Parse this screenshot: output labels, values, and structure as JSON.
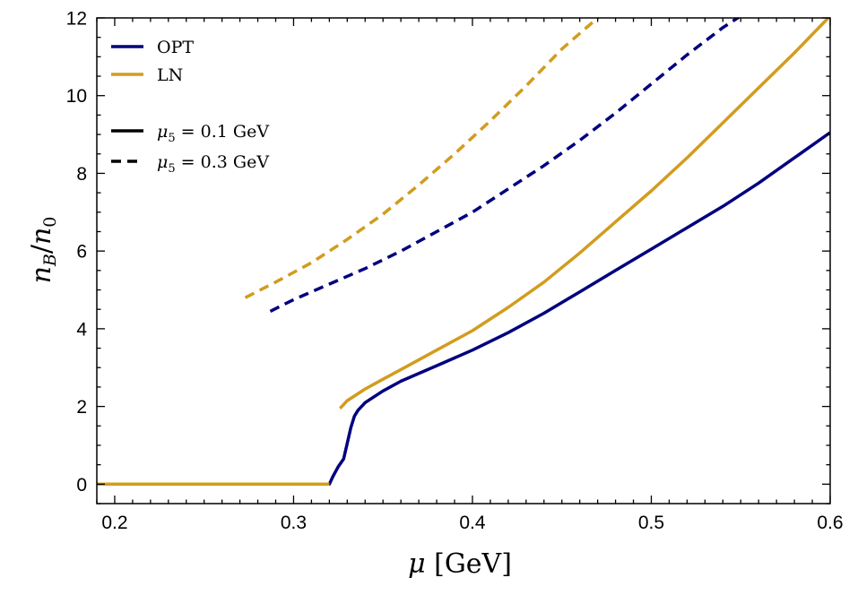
{
  "chart_data": {
    "type": "line",
    "xlabel": "μ [GeV]",
    "ylabel": "n_B/n_0",
    "xlim": [
      0.19,
      0.6
    ],
    "ylim": [
      -0.5,
      12
    ],
    "xticks": [
      0.2,
      0.3,
      0.4,
      0.5,
      0.6
    ],
    "xtick_labels": [
      "0.2",
      "0.3",
      "0.4",
      "0.5",
      "0.6"
    ],
    "yticks": [
      0,
      2,
      4,
      6,
      8,
      10,
      12
    ],
    "ytick_labels": [
      "0",
      "2",
      "4",
      "6",
      "8",
      "10",
      "12"
    ],
    "grid": false,
    "legend_position": "top-left",
    "legend": {
      "colors": [
        {
          "label": "OPT",
          "color": "#00007f"
        },
        {
          "label": "LN",
          "color": "#d29c1e"
        }
      ],
      "styles": [
        {
          "label": "μ5 = 0.1 GeV",
          "sym": "μ",
          "sub": "5",
          "rest": " = 0.1 GeV",
          "dash": "solid"
        },
        {
          "label": "μ5 = 0.3 GeV",
          "sym": "μ",
          "sub": "5",
          "rest": " = 0.3 GeV",
          "dash": "dashed"
        }
      ]
    },
    "series": [
      {
        "model": "OPT",
        "mu5": 0.1,
        "color": "#00007f",
        "dash": "solid",
        "x": [
          0.19,
          0.25,
          0.3,
          0.32,
          0.322,
          0.325,
          0.328,
          0.33,
          0.332,
          0.334,
          0.336,
          0.34,
          0.345,
          0.35,
          0.36,
          0.38,
          0.4,
          0.42,
          0.44,
          0.46,
          0.48,
          0.5,
          0.52,
          0.54,
          0.545,
          0.56,
          0.58,
          0.6
        ],
        "y": [
          0,
          0,
          0,
          0,
          0.2,
          0.45,
          0.65,
          1.05,
          1.45,
          1.75,
          1.9,
          2.1,
          2.25,
          2.4,
          2.65,
          3.05,
          3.45,
          3.9,
          4.4,
          4.95,
          5.5,
          6.05,
          6.6,
          7.15,
          7.3,
          7.75,
          8.4,
          9.05
        ]
      },
      {
        "model": "LN",
        "mu5": 0.1,
        "color": "#d29c1e",
        "dash": "solid",
        "x": [
          0.19,
          0.25,
          0.3,
          0.32
        ],
        "y": [
          0,
          0,
          0,
          0
        ]
      },
      {
        "model": "LN",
        "mu5": 0.1,
        "color": "#d29c1e",
        "dash": "solid",
        "x": [
          0.326,
          0.33,
          0.335,
          0.34,
          0.35,
          0.36,
          0.38,
          0.4,
          0.42,
          0.44,
          0.46,
          0.48,
          0.5,
          0.52,
          0.54,
          0.56,
          0.58,
          0.6
        ],
        "y": [
          1.95,
          2.15,
          2.3,
          2.45,
          2.7,
          2.95,
          3.45,
          3.95,
          4.55,
          5.2,
          5.95,
          6.75,
          7.55,
          8.4,
          9.3,
          10.2,
          11.1,
          12.05
        ]
      },
      {
        "model": "OPT",
        "mu5": 0.3,
        "color": "#00007f",
        "dash": "dashed",
        "x": [
          0.287,
          0.3,
          0.32,
          0.34,
          0.36,
          0.38,
          0.4,
          0.42,
          0.44,
          0.46,
          0.48,
          0.5,
          0.52,
          0.54,
          0.55
        ],
        "y": [
          4.45,
          4.75,
          5.15,
          5.55,
          6.0,
          6.5,
          7.0,
          7.6,
          8.2,
          8.85,
          9.55,
          10.3,
          11.05,
          11.75,
          12.05
        ]
      },
      {
        "model": "LN",
        "mu5": 0.3,
        "color": "#d29c1e",
        "dash": "dashed",
        "x": [
          0.273,
          0.29,
          0.31,
          0.33,
          0.35,
          0.37,
          0.39,
          0.41,
          0.43,
          0.45,
          0.47,
          0.475
        ],
        "y": [
          4.8,
          5.2,
          5.7,
          6.3,
          6.95,
          7.7,
          8.5,
          9.35,
          10.25,
          11.2,
          12.0,
          12.2
        ]
      }
    ]
  }
}
